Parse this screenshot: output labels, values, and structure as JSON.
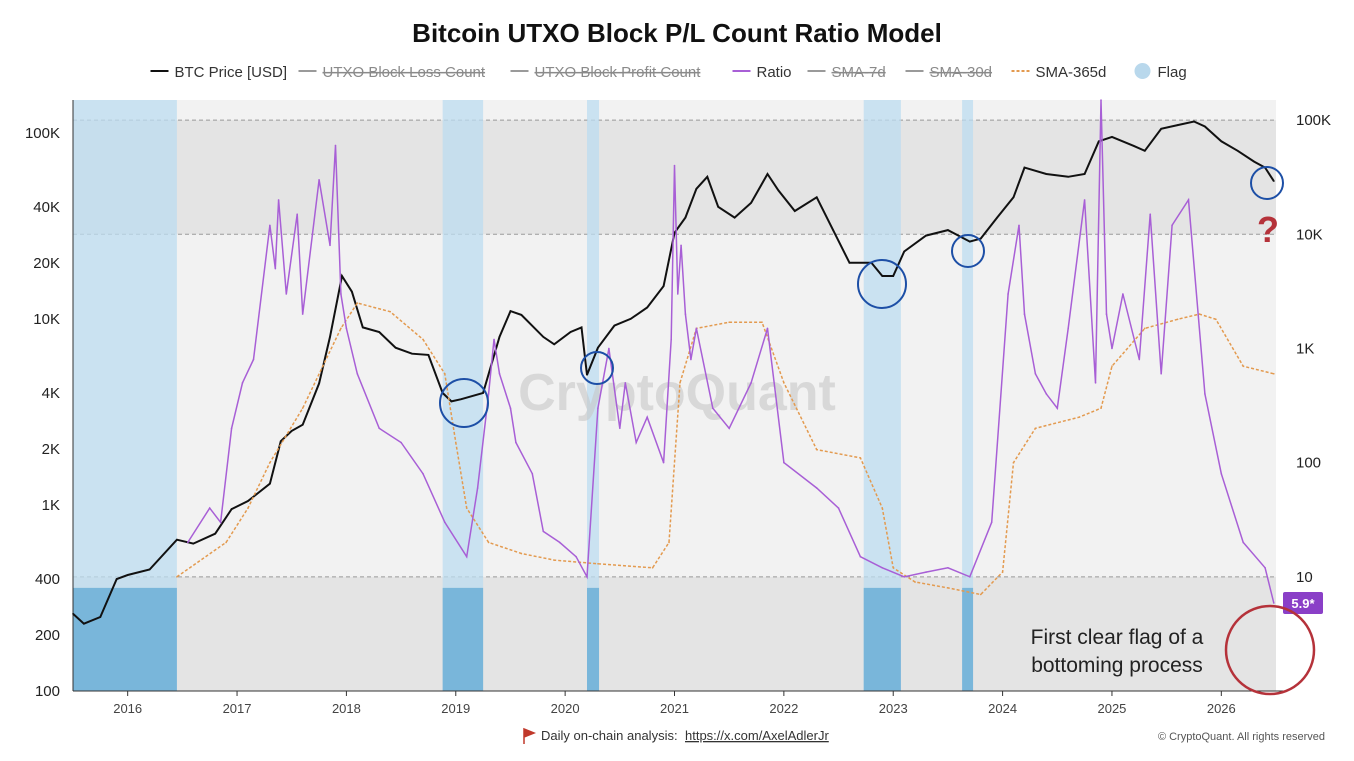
{
  "chart_data": {
    "type": "line",
    "title": "Bitcoin UTXO Block P/L Count Ratio Model",
    "legend": [
      {
        "label": "BTC Price [USD]",
        "style": "line",
        "color": "#111111",
        "struck": false
      },
      {
        "label": "UTXO Block Loss Count",
        "style": "line",
        "color": "#9a9a9a",
        "struck": true
      },
      {
        "label": "UTXO Block Profit Count",
        "style": "line",
        "color": "#9a9a9a",
        "struck": true
      },
      {
        "label": "Ratio",
        "style": "line",
        "color": "#a85fd6",
        "struck": false
      },
      {
        "label": "SMA-7d",
        "style": "line",
        "color": "#9a9a9a",
        "struck": true
      },
      {
        "label": "SMA-30d",
        "style": "line",
        "color": "#9a9a9a",
        "struck": true
      },
      {
        "label": "SMA-365d",
        "style": "dash",
        "color": "#e39a4f",
        "struck": false
      },
      {
        "label": "Flag",
        "style": "dot",
        "color": "#b9d8ec",
        "struck": false
      }
    ],
    "legend_position": "top-center",
    "x_axis": {
      "ticks": [
        "2016",
        "2017",
        "2018",
        "2019",
        "2020",
        "2021",
        "2022",
        "2023",
        "2024",
        "2025",
        "2026"
      ],
      "range": [
        2015.5,
        2026.5
      ]
    },
    "y_left": {
      "scale": "log",
      "range": [
        100,
        150000
      ],
      "ticks": [
        {
          "v": 100,
          "label": "100"
        },
        {
          "v": 200,
          "label": "200"
        },
        {
          "v": 400,
          "label": "400"
        },
        {
          "v": 1000,
          "label": "1K"
        },
        {
          "v": 2000,
          "label": "2K"
        },
        {
          "v": 4000,
          "label": "4K"
        },
        {
          "v": 10000,
          "label": "10K"
        },
        {
          "v": 20000,
          "label": "20K"
        },
        {
          "v": 40000,
          "label": "40K"
        },
        {
          "v": 100000,
          "label": "100K"
        }
      ]
    },
    "y_right": {
      "scale": "log",
      "range": [
        1,
        150000
      ],
      "ticks": [
        {
          "v": 10,
          "label": "10"
        },
        {
          "v": 100,
          "label": "100"
        },
        {
          "v": 1000,
          "label": "1K"
        },
        {
          "v": 10000,
          "label": "10K"
        },
        {
          "v": 100000,
          "label": "100K"
        }
      ]
    },
    "grid": false,
    "horizontal_bands": [
      {
        "from": 10000,
        "to": 100000,
        "color": "#e4e4e4"
      },
      {
        "from": 1,
        "to": 10,
        "color": "#e4e4e4"
      }
    ],
    "flag_periods": [
      [
        2015.5,
        2016.45
      ],
      [
        2018.88,
        2019.25
      ],
      [
        2020.2,
        2020.31
      ],
      [
        2022.73,
        2023.07
      ],
      [
        2023.63,
        2023.73
      ]
    ],
    "series": [
      {
        "name": "BTC Price [USD]",
        "axis": "left",
        "color": "#111111",
        "x": [
          2015.5,
          2015.6,
          2015.75,
          2015.9,
          2016.0,
          2016.2,
          2016.45,
          2016.6,
          2016.8,
          2016.95,
          2017.1,
          2017.3,
          2017.4,
          2017.5,
          2017.6,
          2017.75,
          2017.85,
          2017.96,
          2018.05,
          2018.15,
          2018.3,
          2018.45,
          2018.6,
          2018.75,
          2018.88,
          2018.96,
          2019.05,
          2019.25,
          2019.4,
          2019.5,
          2019.6,
          2019.8,
          2019.9,
          2020.05,
          2020.15,
          2020.2,
          2020.3,
          2020.45,
          2020.6,
          2020.75,
          2020.9,
          2021.0,
          2021.1,
          2021.2,
          2021.3,
          2021.4,
          2021.55,
          2021.7,
          2021.85,
          2021.95,
          2022.1,
          2022.3,
          2022.45,
          2022.6,
          2022.8,
          2022.9,
          2023.0,
          2023.1,
          2023.3,
          2023.5,
          2023.7,
          2023.8,
          2023.95,
          2024.1,
          2024.2,
          2024.4,
          2024.6,
          2024.75,
          2024.88,
          2025.0,
          2025.2,
          2025.3,
          2025.45,
          2025.6,
          2025.75,
          2025.85,
          2026.0,
          2026.15,
          2026.3,
          2026.4,
          2026.48
        ],
        "values": [
          260,
          230,
          250,
          400,
          420,
          450,
          650,
          620,
          700,
          950,
          1050,
          1300,
          2200,
          2500,
          2700,
          4500,
          8000,
          17000,
          14000,
          9000,
          8500,
          7000,
          6500,
          6400,
          4000,
          3600,
          3700,
          4000,
          8000,
          11000,
          10500,
          8000,
          7300,
          8500,
          9000,
          5000,
          7000,
          9200,
          10000,
          11500,
          15000,
          29000,
          35000,
          50000,
          58000,
          40000,
          35000,
          42000,
          60000,
          49000,
          38000,
          45000,
          30000,
          20000,
          20000,
          17000,
          17000,
          23000,
          28000,
          30000,
          26000,
          27000,
          35000,
          45000,
          65000,
          60000,
          58000,
          60000,
          90000,
          95000,
          85000,
          80000,
          105000,
          110000,
          115000,
          108000,
          90000,
          80000,
          70000,
          65000,
          55000
        ]
      },
      {
        "name": "SMA-365d",
        "axis": "right",
        "color": "#e39a4f",
        "x": [
          2016.45,
          2016.9,
          2017.1,
          2017.3,
          2017.6,
          2017.95,
          2018.1,
          2018.4,
          2018.7,
          2018.9,
          2019.0,
          2019.1,
          2019.3,
          2019.6,
          2019.9,
          2020.3,
          2020.8,
          2020.95,
          2021.05,
          2021.2,
          2021.5,
          2021.8,
          2022.0,
          2022.3,
          2022.7,
          2022.9,
          2023.0,
          2023.2,
          2023.5,
          2023.8,
          2024.0,
          2024.1,
          2024.3,
          2024.7,
          2024.9,
          2025.0,
          2025.3,
          2025.6,
          2025.8,
          2025.95,
          2026.2,
          2026.48
        ],
        "values": [
          10,
          20,
          40,
          100,
          300,
          1500,
          2500,
          2100,
          1200,
          600,
          150,
          40,
          20,
          16,
          14,
          13,
          12,
          20,
          500,
          1500,
          1700,
          1700,
          500,
          130,
          110,
          40,
          12,
          9,
          8,
          7,
          11,
          100,
          200,
          250,
          300,
          700,
          1500,
          1800,
          2000,
          1800,
          700,
          600
        ]
      },
      {
        "name": "Ratio",
        "axis": "right",
        "color": "#a85fd6",
        "x": [
          2016.55,
          2016.75,
          2016.85,
          2016.95,
          2017.05,
          2017.15,
          2017.3,
          2017.35,
          2017.38,
          2017.45,
          2017.55,
          2017.6,
          2017.75,
          2017.85,
          2017.9,
          2017.95,
          2018.0,
          2018.1,
          2018.3,
          2018.5,
          2018.7,
          2018.9,
          2019.1,
          2019.2,
          2019.3,
          2019.35,
          2019.4,
          2019.5,
          2019.55,
          2019.7,
          2019.8,
          2019.95,
          2020.1,
          2020.2,
          2020.3,
          2020.4,
          2020.5,
          2020.55,
          2020.65,
          2020.75,
          2020.9,
          2020.97,
          2021.0,
          2021.03,
          2021.06,
          2021.1,
          2021.15,
          2021.2,
          2021.35,
          2021.5,
          2021.7,
          2021.85,
          2022.0,
          2022.3,
          2022.5,
          2022.7,
          2022.9,
          2023.1,
          2023.3,
          2023.5,
          2023.7,
          2023.9,
          2024.05,
          2024.15,
          2024.2,
          2024.3,
          2024.4,
          2024.5,
          2024.6,
          2024.75,
          2024.85,
          2024.9,
          2024.95,
          2025.0,
          2025.1,
          2025.25,
          2025.35,
          2025.45,
          2025.55,
          2025.7,
          2025.85,
          2026.0,
          2026.2,
          2026.4,
          2026.48
        ],
        "values": [
          20,
          40,
          30,
          200,
          500,
          800,
          12000,
          5000,
          20000,
          3000,
          15000,
          2000,
          30000,
          8000,
          60000,
          3000,
          1500,
          600,
          200,
          150,
          80,
          30,
          15,
          60,
          400,
          1200,
          600,
          300,
          150,
          80,
          25,
          20,
          15,
          10,
          300,
          1000,
          200,
          500,
          150,
          250,
          100,
          1200,
          40000,
          3000,
          8000,
          2000,
          800,
          1500,
          300,
          200,
          500,
          1500,
          100,
          60,
          40,
          15,
          12,
          10,
          11,
          12,
          10,
          30,
          3000,
          12000,
          2000,
          600,
          400,
          300,
          1500,
          20000,
          500,
          150000,
          2000,
          1000,
          3000,
          800,
          15000,
          600,
          12000,
          20000,
          400,
          80,
          20,
          12,
          5.9
        ]
      }
    ],
    "last_value_badge": "5.9*",
    "watermark": "CryptoQuant",
    "annotation": "First clear flag of a bottoming process",
    "question_mark": "?",
    "footer_left_text": "Daily on-chain analysis:",
    "footer_link": "https://x.com/AxelAdlerJr",
    "footer_right": "© CryptoQuant. All rights reserved"
  }
}
